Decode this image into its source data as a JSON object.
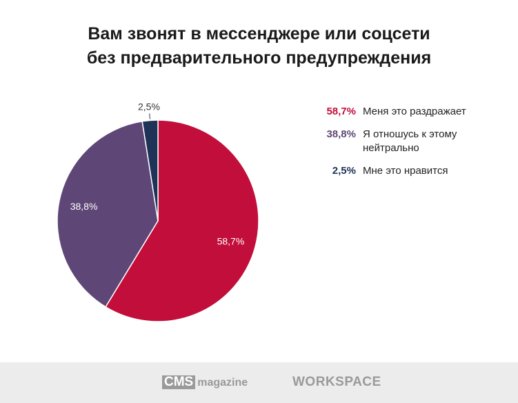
{
  "chart_data": {
    "type": "pie",
    "title": "Вам звонят в мессенджере или соцсети без предварительного предупреждения",
    "title_lines": [
      "Вам звонят в мессенджере или соцсети",
      "без предварительного предупреждения"
    ],
    "legend_position": "right",
    "slices": [
      {
        "label": "Меня это раздражает",
        "value": 58.7,
        "value_label": "58,7%",
        "color": "#c20e3a"
      },
      {
        "label": "Я отношусь к этому нейтрально",
        "value": 38.8,
        "value_label": "38,8%",
        "color": "#5e4776"
      },
      {
        "label": "Мне это нравится",
        "value": 2.5,
        "value_label": "2,5%",
        "color": "#1f3358"
      }
    ]
  },
  "footer": {
    "logo1_box": "CMS",
    "logo1_text": "magazine",
    "logo2": "WORKSPACE"
  }
}
